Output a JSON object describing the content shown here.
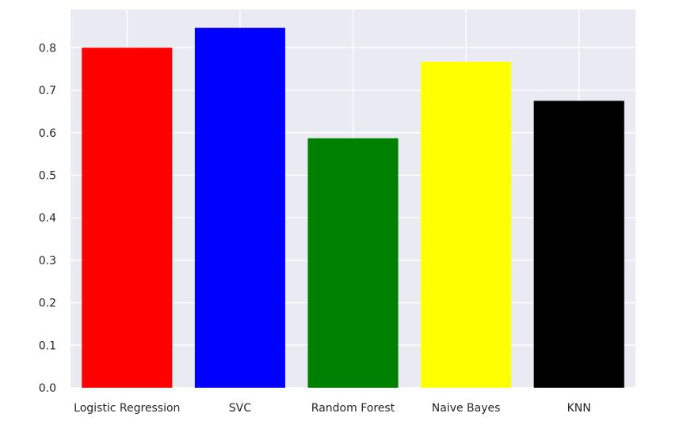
{
  "chart_data": {
    "type": "bar",
    "title": "",
    "xlabel": "",
    "ylabel": "",
    "categories": [
      "Logistic Regression",
      "SVC",
      "Random Forest",
      "Naive Bayes",
      "KNN"
    ],
    "values": [
      0.8,
      0.847,
      0.587,
      0.767,
      0.675
    ],
    "colors": [
      "#ff0000",
      "#0000ff",
      "#008000",
      "#ffff00",
      "#000000"
    ],
    "ylim": [
      0,
      0.89
    ],
    "yticks": [
      "0.0",
      "0.1",
      "0.2",
      "0.3",
      "0.4",
      "0.5",
      "0.6",
      "0.7",
      "0.8"
    ],
    "grid": true,
    "background": "#eaeaf2",
    "grid_color": "#ffffff"
  }
}
